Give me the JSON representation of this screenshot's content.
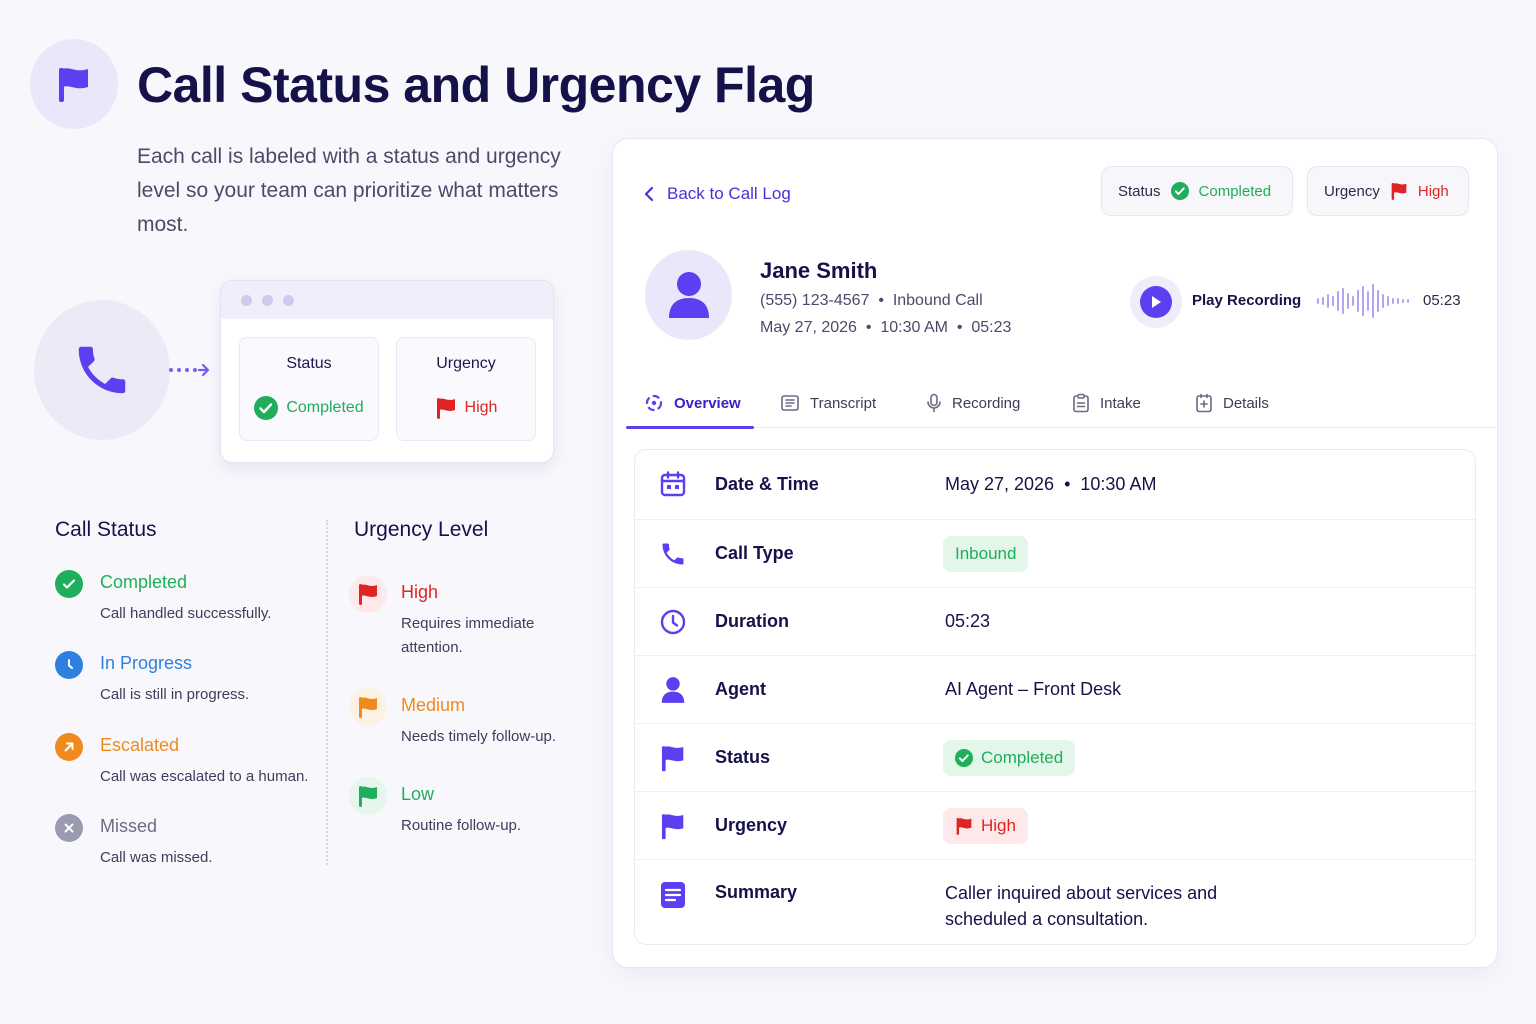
{
  "header": {
    "title": "Call Status and Urgency Flag",
    "subtitle": "Each call is labeled with a status and urgency level so your team can prioritize what matters most."
  },
  "illustration": {
    "status_label": "Status",
    "status_value": "Completed",
    "urgency_label": "Urgency",
    "urgency_value": "High"
  },
  "call_status": {
    "title": "Call Status",
    "items": [
      {
        "name": "Completed",
        "desc": "Call handled successfully.",
        "color": "#1fae5b",
        "icon": "check-circle-icon"
      },
      {
        "name": "In Progress",
        "desc": "Call is still in progress.",
        "color": "#2f7fe0",
        "icon": "clock-icon"
      },
      {
        "name": "Escalated",
        "desc": "Call was escalated to a human.",
        "color": "#f08a1c",
        "icon": "arrow-up-right-icon"
      },
      {
        "name": "Missed",
        "desc": "Call was missed.",
        "color": "#8c8ca3",
        "icon": "x-circle-icon"
      }
    ]
  },
  "urgency_level": {
    "title": "Urgency Level",
    "items": [
      {
        "name": "High",
        "desc1": "Requires immediate",
        "desc2": "attention.",
        "color": "#e02424"
      },
      {
        "name": "Medium",
        "desc1": "Needs timely follow-up.",
        "desc2": "",
        "color": "#f08a1c"
      },
      {
        "name": "Low",
        "desc1": "Routine follow-up.",
        "desc2": "",
        "color": "#1fae5b"
      }
    ]
  },
  "detail": {
    "back_label": "Back to Call Log",
    "status_chip": {
      "label": "Status",
      "value": "Completed"
    },
    "urgency_chip": {
      "label": "Urgency",
      "value": "High"
    },
    "caller": {
      "name": "Jane Smith",
      "phone": "(555) 123-4567",
      "call_kind": "Inbound Call",
      "date": "May 27, 2026",
      "time": "10:30 AM",
      "duration": "05:23"
    },
    "recording": {
      "label": "Play Recording",
      "time": "05:23"
    },
    "tabs": [
      "Overview",
      "Transcript",
      "Recording",
      "Intake",
      "Details"
    ],
    "rows": {
      "datetime": {
        "label": "Date & Time",
        "date": "May 27, 2026",
        "time": "10:30 AM"
      },
      "call_type": {
        "label": "Call Type",
        "value": "Inbound"
      },
      "duration": {
        "label": "Duration",
        "value": "05:23"
      },
      "agent": {
        "label": "Agent",
        "value": "AI Agent – Front Desk"
      },
      "status": {
        "label": "Status",
        "value": "Completed"
      },
      "urgency": {
        "label": "Urgency",
        "value": "High"
      },
      "summary": {
        "label": "Summary",
        "line1": "Caller inquired about services and",
        "line2": "scheduled a consultation."
      }
    }
  },
  "colors": {
    "accent": "#5b3ff0",
    "green": "#1fae5b",
    "red": "#e02424",
    "orange": "#f08a1c",
    "blue": "#2f7fe0"
  }
}
